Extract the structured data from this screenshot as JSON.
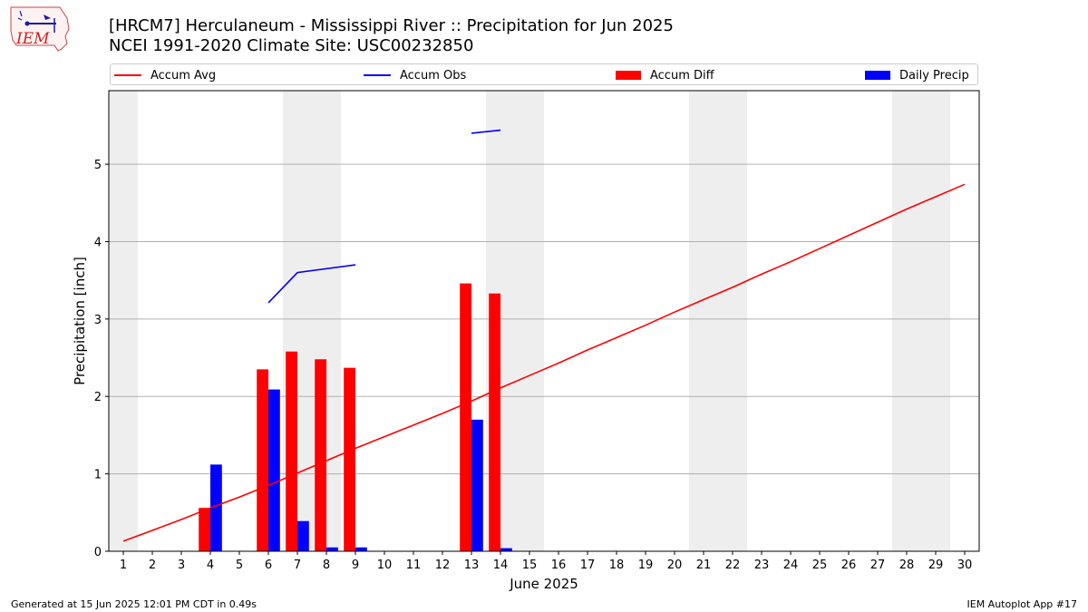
{
  "title_line1": "[HRCM7] Herculaneum - Mississippi River :: Precipitation for Jun 2025",
  "title_line2": "NCEI 1991-2020 Climate Site: USC00232850",
  "logo_text": "IEM",
  "footer_left": "Generated at 15 Jun 2025 12:01 PM CDT in 0.49s",
  "footer_right": "IEM Autoplot App #17",
  "colors": {
    "avg": "#ff0000",
    "obs": "#0000ff",
    "diff": "#ff0000",
    "daily": "#0000ff",
    "weekend": "#eeeeee",
    "grid": "#b0b0b0"
  },
  "chart_data": {
    "type": "bar",
    "xlabel": "June 2025",
    "ylabel": "Precipitation [inch]",
    "xlim": [
      0.5,
      30.5
    ],
    "ylim": [
      0,
      5.95
    ],
    "x_ticks": [
      1,
      2,
      3,
      4,
      5,
      6,
      7,
      8,
      9,
      10,
      11,
      12,
      13,
      14,
      15,
      16,
      17,
      18,
      19,
      20,
      21,
      22,
      23,
      24,
      25,
      26,
      27,
      28,
      29,
      30
    ],
    "y_ticks": [
      0,
      1,
      2,
      3,
      4,
      5
    ],
    "grid": "horizontal",
    "legend_position": "top",
    "weekend_spans": [
      [
        0.5,
        1.5
      ],
      [
        6.5,
        8.5
      ],
      [
        13.5,
        15.5
      ],
      [
        20.5,
        22.5
      ],
      [
        27.5,
        29.5
      ]
    ],
    "legend": [
      {
        "label": "Accum Avg",
        "kind": "line",
        "color": "#ff0000"
      },
      {
        "label": "Accum Obs",
        "kind": "line",
        "color": "#0000ff"
      },
      {
        "label": "Accum Diff",
        "kind": "bar",
        "color": "#ff0000"
      },
      {
        "label": "Daily Precip",
        "kind": "bar",
        "color": "#0000ff"
      }
    ],
    "series": [
      {
        "name": "Accum Avg",
        "type": "line",
        "x": [
          1,
          2,
          3,
          4,
          5,
          6,
          7,
          8,
          9,
          10,
          11,
          12,
          13,
          14,
          15,
          16,
          17,
          18,
          19,
          20,
          21,
          22,
          23,
          24,
          25,
          26,
          27,
          28,
          29,
          30
        ],
        "values": [
          0.13,
          0.27,
          0.41,
          0.56,
          0.7,
          0.85,
          1.01,
          1.17,
          1.33,
          1.48,
          1.63,
          1.78,
          1.94,
          2.11,
          2.27,
          2.43,
          2.6,
          2.76,
          2.92,
          3.09,
          3.25,
          3.41,
          3.58,
          3.74,
          3.91,
          4.08,
          4.25,
          4.42,
          4.58,
          4.74
        ]
      },
      {
        "name": "Accum Obs",
        "type": "line",
        "segments": [
          {
            "x": [
              6,
              7,
              9
            ],
            "values": [
              3.21,
              3.6,
              3.7
            ]
          },
          {
            "x": [
              13,
              14
            ],
            "values": [
              5.4,
              5.44
            ]
          }
        ]
      },
      {
        "name": "Accum Diff",
        "type": "bar",
        "x": [
          4,
          6,
          7,
          8,
          9,
          13,
          14
        ],
        "values": [
          0.56,
          2.35,
          2.58,
          2.48,
          2.37,
          3.46,
          3.33
        ]
      },
      {
        "name": "Daily Precip",
        "type": "bar",
        "x": [
          4,
          6,
          7,
          8,
          9,
          13,
          14
        ],
        "values": [
          1.12,
          2.09,
          0.39,
          0.05,
          0.05,
          1.7,
          0.04
        ]
      }
    ]
  }
}
